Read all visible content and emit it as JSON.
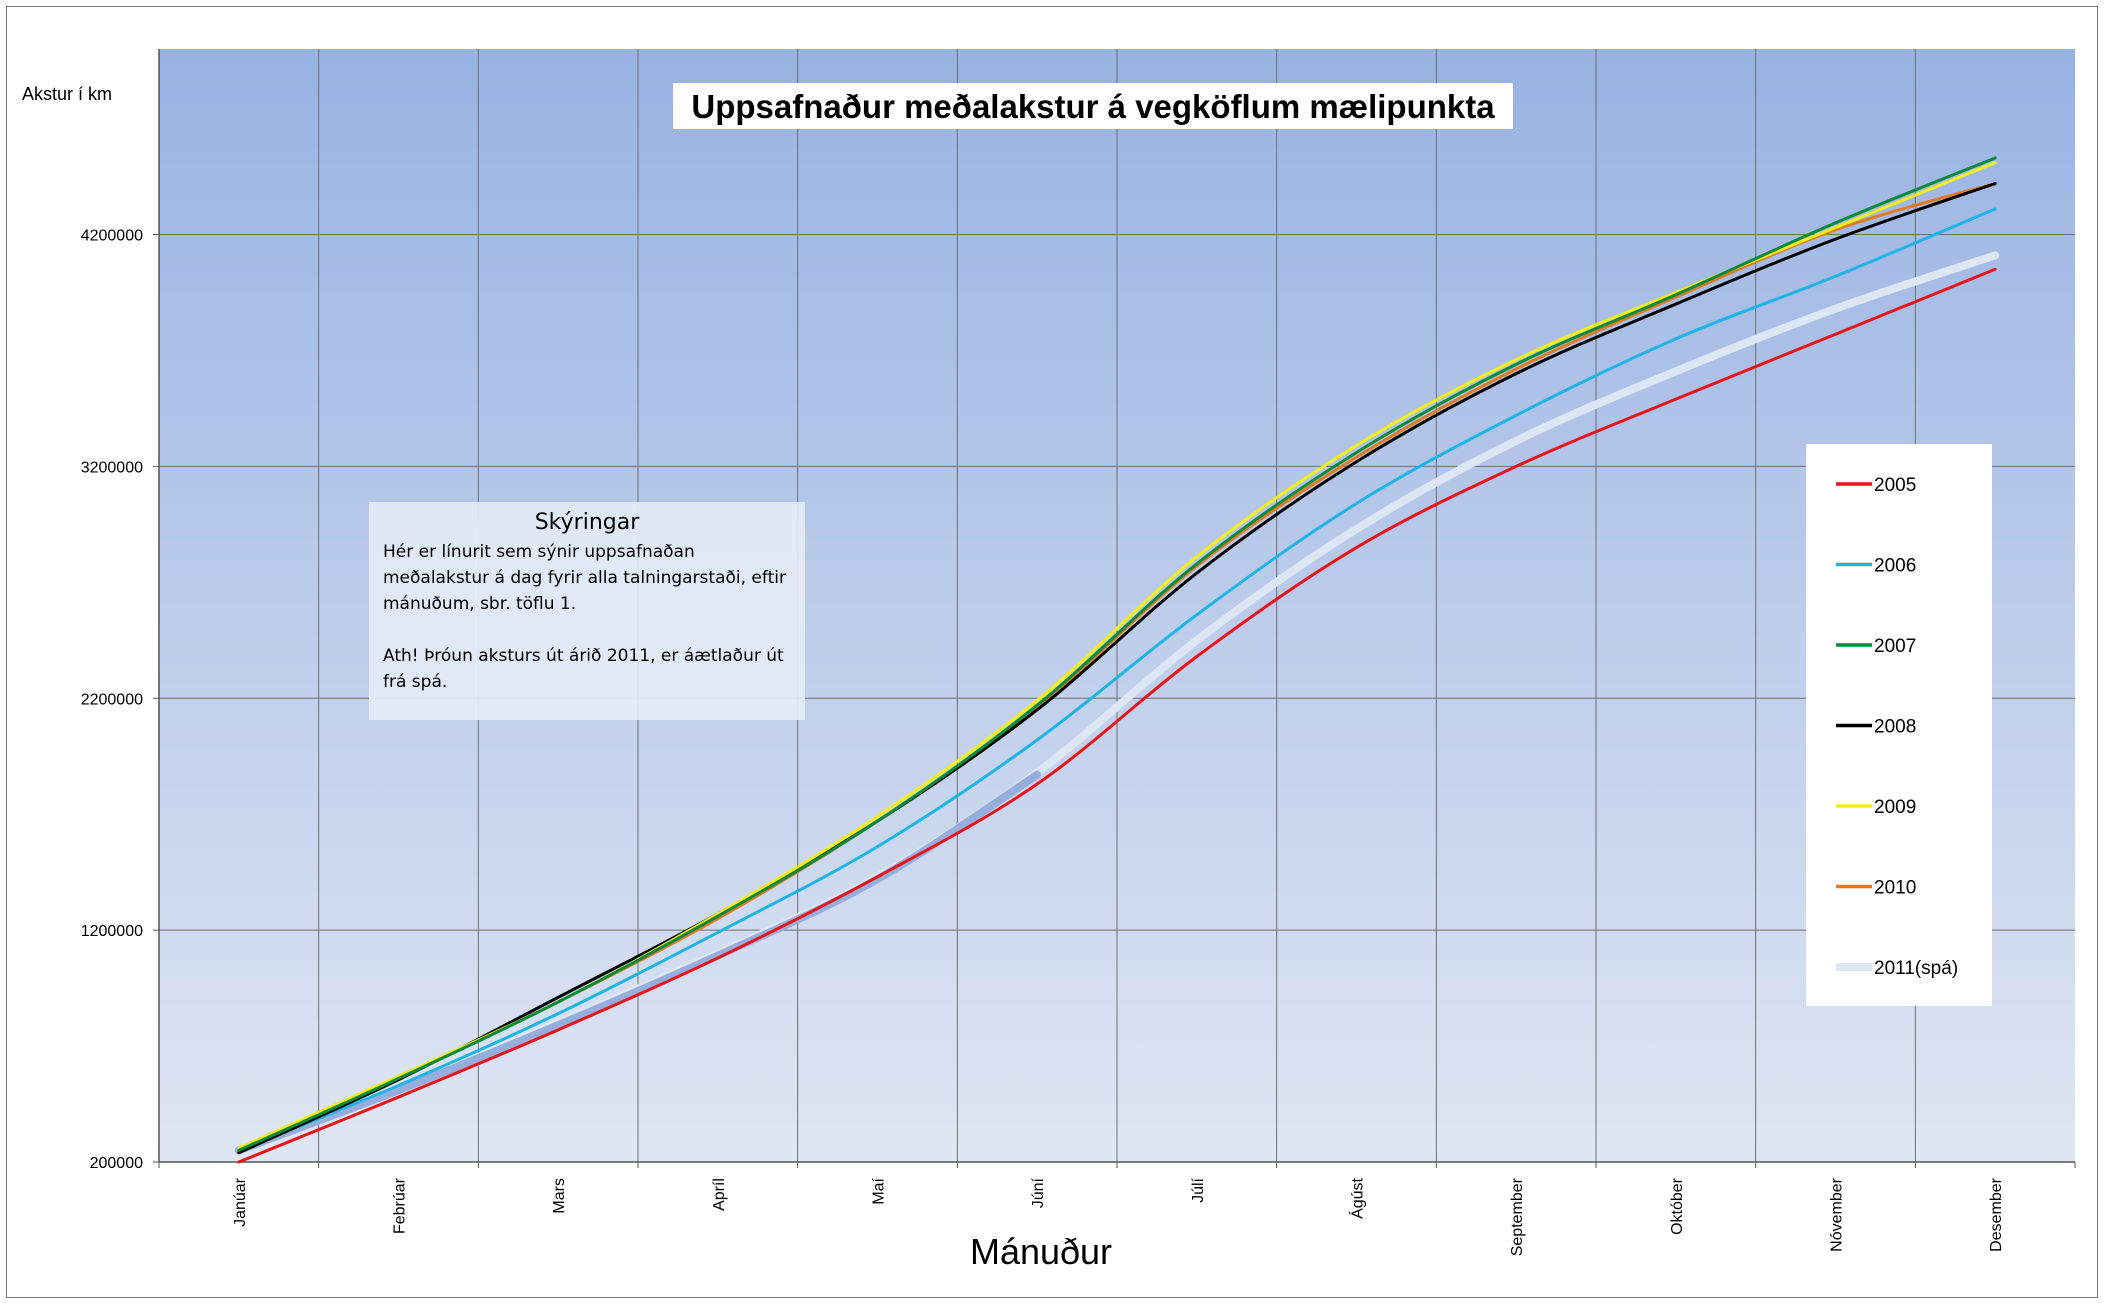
{
  "chart_data": {
    "type": "line",
    "title": "Uppsafnaður meðalakstur á vegköflum mælipunkta",
    "ylabel": "Akstur í km",
    "xlabel": "Mánuður",
    "categories": [
      "Janúar",
      "Febrúar",
      "Mars",
      "Apríl",
      "Maí",
      "Júní",
      "Júlí",
      "Ágúst",
      "September",
      "Október",
      "Nóvember",
      "Desember"
    ],
    "ylim": [
      200000,
      5000000
    ],
    "yticks": [
      "200000",
      "1200000",
      "2200000",
      "3200000",
      "4200000"
    ],
    "grid": true,
    "legend_position": "right",
    "series": [
      {
        "name": "2005",
        "color": "#e8151b",
        "width": 3,
        "values": [
          200000,
          480000,
          770000,
          1080000,
          1430000,
          1830000,
          2380000,
          2850000,
          3200000,
          3490000,
          3770000,
          4050000
        ]
      },
      {
        "name": "2006",
        "color": "#1fb4e6",
        "width": 3,
        "values": [
          250000,
          530000,
          840000,
          1190000,
          1560000,
          2020000,
          2560000,
          3040000,
          3420000,
          3750000,
          4020000,
          4310000
        ]
      },
      {
        "name": "2007",
        "color": "#0b8a3e",
        "width": 3,
        "values": [
          250000,
          560000,
          890000,
          1260000,
          1670000,
          2170000,
          2780000,
          3260000,
          3640000,
          3940000,
          4250000,
          4530000
        ]
      },
      {
        "name": "2008",
        "color": "#000000",
        "width": 3,
        "values": [
          240000,
          555000,
          910000,
          1270000,
          1670000,
          2150000,
          2740000,
          3220000,
          3600000,
          3900000,
          4180000,
          4420000
        ]
      },
      {
        "name": "2009",
        "color": "#f4ee16",
        "width": 3,
        "values": [
          260000,
          570000,
          890000,
          1270000,
          1690000,
          2190000,
          2810000,
          3290000,
          3660000,
          3950000,
          4230000,
          4510000
        ]
      },
      {
        "name": "2010",
        "color": "#e07b23",
        "width": 3,
        "values": [
          250000,
          560000,
          890000,
          1250000,
          1670000,
          2160000,
          2770000,
          3240000,
          3620000,
          3930000,
          4220000,
          4420000
        ]
      },
      {
        "name": "2011(spá)",
        "color": "#dde6f3",
        "width": 8,
        "values": [
          250000,
          510000,
          800000,
          1100000,
          1430000,
          1880000,
          2450000,
          2930000,
          3310000,
          3610000,
          3880000,
          4110000
        ]
      }
    ],
    "overlay_2011_actual": {
      "color": "#95aede",
      "values": [
        250000,
        510000,
        790000,
        1090000,
        1420000,
        1870000
      ]
    }
  },
  "info_box": {
    "title": "Skýringar",
    "paragraph1": "Hér er línurit sem sýnir uppsafnaðan meðalakstur á dag fyrir alla talningarstaði, eftir mánuðum, sbr. töflu 1.",
    "paragraph2": "Ath! Þróun aksturs út árið 2011, er áætlaður út frá spá."
  }
}
